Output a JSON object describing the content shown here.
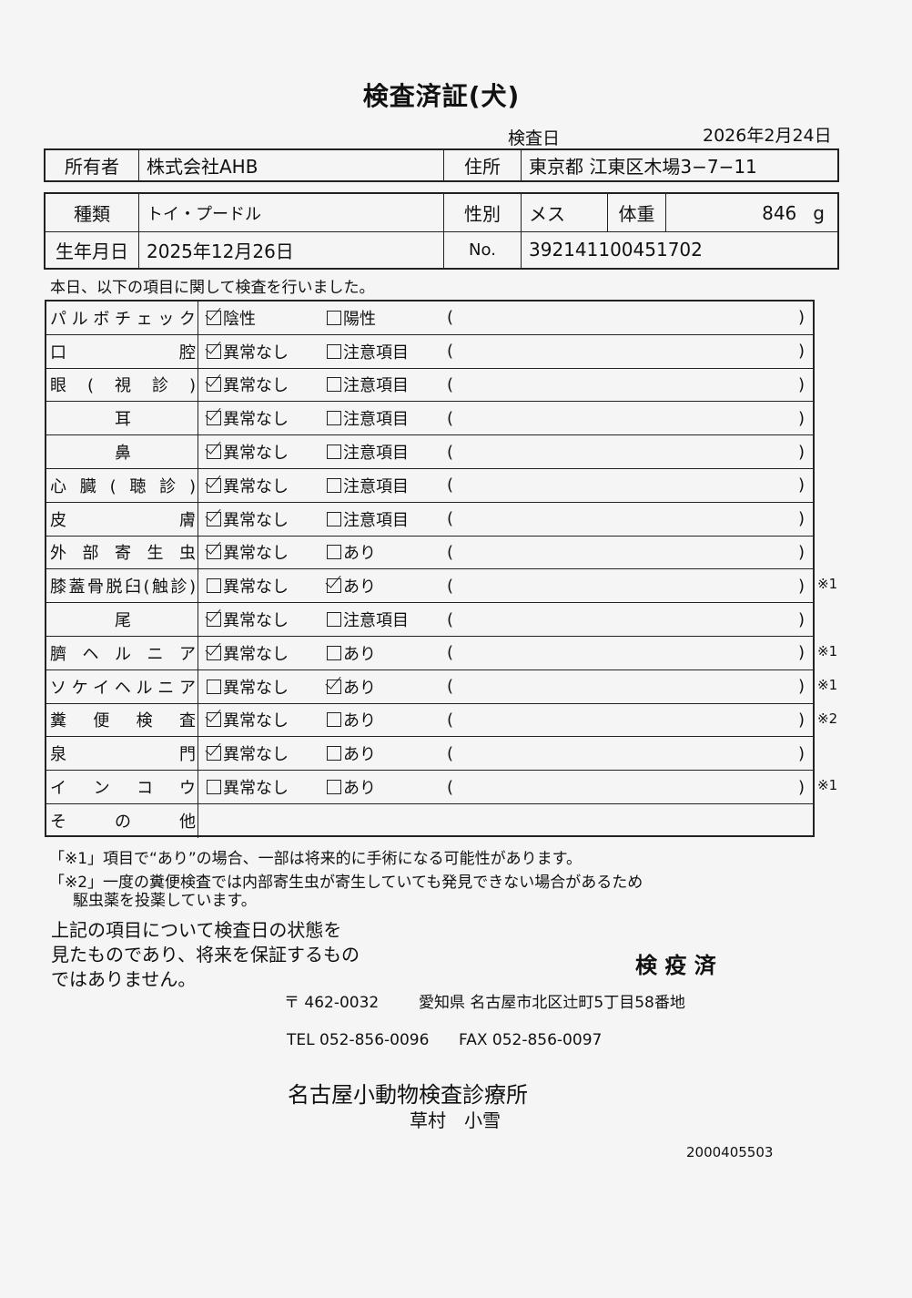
{
  "title": "検査済証(犬)",
  "exam_date_label": "検査日",
  "exam_date": "2026年2月24日",
  "owner": {
    "label": "所有者",
    "value": "株式会社AHB",
    "address_label": "住所",
    "address": "東京都 江東区木場3−7−11"
  },
  "animal": {
    "breed_label": "種類",
    "breed": "トイ・プードル",
    "sex_label": "性別",
    "sex": "メス",
    "weight_label": "体重",
    "weight": "846",
    "weight_unit": "g",
    "birth_label": "生年月日",
    "birth": "2025年12月26日",
    "no_label": "No.",
    "no": "392141100451702"
  },
  "intro": "本日、以下の項目に関して検査を行いました。",
  "checks": [
    {
      "label": "パルボチェック",
      "opt1": "陰性",
      "opt2": "陽性",
      "opt1_checked": true,
      "opt2_checked": false,
      "note": ""
    },
    {
      "label": "口腔",
      "opt1": "異常なし",
      "opt2": "注意項目",
      "opt1_checked": true,
      "opt2_checked": false,
      "note": ""
    },
    {
      "label": "眼(視診)",
      "opt1": "異常なし",
      "opt2": "注意項目",
      "opt1_checked": true,
      "opt2_checked": false,
      "note": ""
    },
    {
      "label": "耳",
      "opt1": "異常なし",
      "opt2": "注意項目",
      "opt1_checked": true,
      "opt2_checked": false,
      "note": ""
    },
    {
      "label": "鼻",
      "opt1": "異常なし",
      "opt2": "注意項目",
      "opt1_checked": true,
      "opt2_checked": false,
      "note": ""
    },
    {
      "label": "心臓(聴診)",
      "opt1": "異常なし",
      "opt2": "注意項目",
      "opt1_checked": true,
      "opt2_checked": false,
      "note": ""
    },
    {
      "label": "皮膚",
      "opt1": "異常なし",
      "opt2": "注意項目",
      "opt1_checked": true,
      "opt2_checked": false,
      "note": ""
    },
    {
      "label": "外部寄生虫",
      "opt1": "異常なし",
      "opt2": "あり",
      "opt1_checked": true,
      "opt2_checked": false,
      "note": ""
    },
    {
      "label": "膝蓋骨脱臼(触診)",
      "opt1": "異常なし",
      "opt2": "あり",
      "opt1_checked": false,
      "opt2_checked": true,
      "note": "※1"
    },
    {
      "label": "尾",
      "opt1": "異常なし",
      "opt2": "注意項目",
      "opt1_checked": true,
      "opt2_checked": false,
      "note": ""
    },
    {
      "label": "臍ヘルニア",
      "opt1": "異常なし",
      "opt2": "あり",
      "opt1_checked": true,
      "opt2_checked": false,
      "note": "※1"
    },
    {
      "label": "ソケイヘルニア",
      "opt1": "異常なし",
      "opt2": "あり",
      "opt1_checked": false,
      "opt2_checked": true,
      "note": "※1"
    },
    {
      "label": "糞便検査",
      "opt1": "異常なし",
      "opt2": "あり",
      "opt1_checked": true,
      "opt2_checked": false,
      "note": "※2"
    },
    {
      "label": "泉門",
      "opt1": "異常なし",
      "opt2": "あり",
      "opt1_checked": true,
      "opt2_checked": false,
      "note": ""
    },
    {
      "label": "インコウ",
      "opt1": "異常なし",
      "opt2": "あり",
      "opt1_checked": false,
      "opt2_checked": false,
      "note": "※1"
    }
  ],
  "other_label": "その他",
  "paren_open": "(",
  "paren_close": ")",
  "footnotes": [
    "「※1」項目で“あり”の場合、一部は将来的に手術になる可能性があります。",
    "「※2」一度の糞便検査では内部寄生虫が寄生していても発見できない場合があるため",
    "駆虫薬を投薬しています。"
  ],
  "disclaimer": [
    "上記の項目について検査日の状態を",
    "見たものであり、将来を保証するもの",
    "ではありません。"
  ],
  "stamp": "検 疫 済",
  "clinic": {
    "postal": "〒 462-0032",
    "address": "愛知県 名古屋市北区辻町5丁目58番地",
    "tel": "TEL 052-856-0096",
    "fax": "FAX 052-856-0097",
    "name": "名古屋小動物検査診療所",
    "person": "草村　小雪"
  },
  "doc_number": "2000405503"
}
